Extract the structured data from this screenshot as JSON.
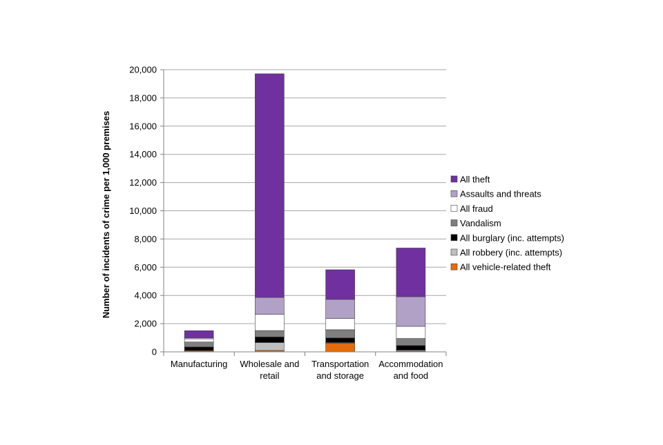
{
  "chart_data": {
    "type": "bar",
    "stacked": true,
    "title": "",
    "xlabel": "",
    "ylabel": "Number of incidents of crime per 1,000 premises",
    "ylim": [
      0,
      20000
    ],
    "y_ticks": [
      0,
      2000,
      4000,
      6000,
      8000,
      10000,
      12000,
      14000,
      16000,
      18000,
      20000
    ],
    "y_tick_labels": [
      "0",
      "2,000",
      "4,000",
      "6,000",
      "8,000",
      "10,000",
      "12,000",
      "14,000",
      "16,000",
      "18,000",
      "20,000"
    ],
    "grid": true,
    "legend_position": "right",
    "categories": [
      [
        "Manufacturing"
      ],
      [
        "Wholesale and",
        "retail"
      ],
      [
        "Transportation",
        "and storage"
      ],
      [
        "Accommodation",
        "and food"
      ]
    ],
    "series": [
      {
        "name": "All vehicle-related theft",
        "color": "#e46c0a",
        "values": [
          80,
          100,
          620,
          50
        ]
      },
      {
        "name": "All robbery (inc. attempts)",
        "color": "#bfbfbf",
        "values": [
          20,
          560,
          40,
          70
        ]
      },
      {
        "name": "All burglary (inc. attempts)",
        "color": "#000000",
        "values": [
          250,
          400,
          330,
          330
        ]
      },
      {
        "name": "Vandalism",
        "color": "#7f7f7f",
        "values": [
          350,
          450,
          580,
          500
        ]
      },
      {
        "name": "All fraud",
        "color": "#ffffff",
        "values": [
          220,
          1150,
          800,
          860
        ]
      },
      {
        "name": "Assaults and threats",
        "color": "#b2a1c7",
        "values": [
          80,
          1200,
          1350,
          2100
        ]
      },
      {
        "name": "All theft",
        "color": "#7030a0",
        "values": [
          500,
          15850,
          2100,
          3450
        ]
      }
    ],
    "legend_order": [
      "All theft",
      "Assaults and threats",
      "All fraud",
      "Vandalism",
      "All burglary (inc. attempts)",
      "All robbery (inc. attempts)",
      "All vehicle-related theft"
    ]
  }
}
